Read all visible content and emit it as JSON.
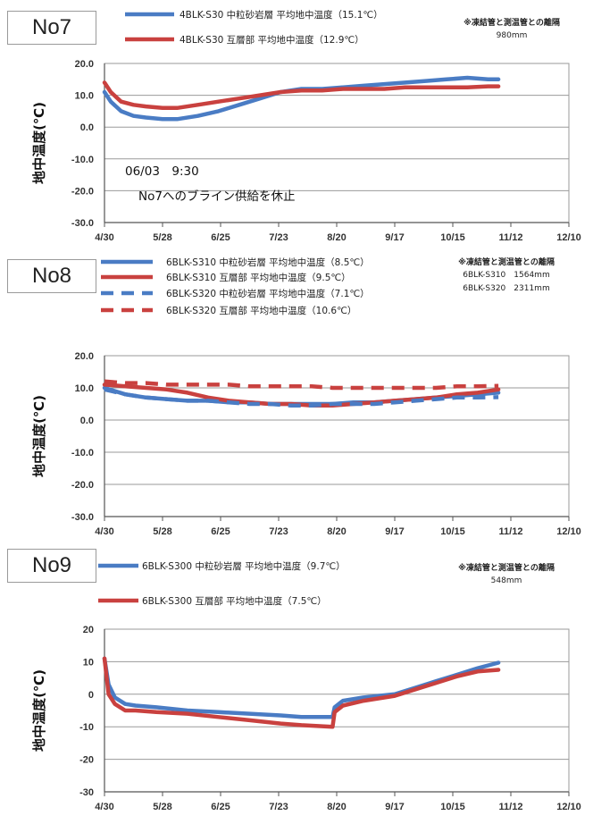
{
  "colors": {
    "blue": "#4a7cc4",
    "red": "#c9413f",
    "grid": "#9a9a9a",
    "axis": "#555555"
  },
  "chart_data": [
    {
      "type": "line",
      "panel_label": "No7",
      "ylabel": "地中温度(℃)",
      "ylim": [
        -30,
        20
      ],
      "yticks": [
        "20.0",
        "10.0",
        "0.0",
        "-10.0",
        "-20.0",
        "-30.0"
      ],
      "x_ticks": [
        "4/30",
        "5/28",
        "6/25",
        "7/23",
        "8/20",
        "9/17",
        "10/15",
        "11/12",
        "12/10"
      ],
      "grid": true,
      "legend_position": "top",
      "series": [
        {
          "name": "4BLK-S30 中粒砂岩層 平均地中温度（15.1℃）",
          "color": "blue",
          "style": "solid",
          "x": [
            0,
            3,
            8,
            14,
            20,
            28,
            35,
            45,
            55,
            65,
            75,
            85,
            95,
            105,
            115,
            125,
            135,
            145,
            155,
            165,
            175,
            185,
            190
          ],
          "y": [
            11,
            8,
            5,
            3.5,
            3,
            2.5,
            2.5,
            3.5,
            5,
            7,
            9,
            11,
            12,
            12,
            12.5,
            13,
            13.5,
            14,
            14.5,
            15,
            15.5,
            15,
            15
          ]
        },
        {
          "name": "4BLK-S30 互層部 平均地中温度（12.9℃）",
          "color": "red",
          "style": "solid",
          "x": [
            0,
            3,
            8,
            14,
            20,
            28,
            35,
            45,
            55,
            65,
            75,
            85,
            95,
            105,
            115,
            125,
            135,
            145,
            155,
            165,
            175,
            185,
            190
          ],
          "y": [
            14,
            11,
            8,
            7,
            6.5,
            6,
            6,
            7,
            8,
            9,
            10,
            11,
            11.5,
            11.5,
            12,
            12,
            12,
            12.5,
            12.5,
            12.5,
            12.5,
            12.8,
            12.8
          ]
        }
      ],
      "notes": [
        "※凍結管と測温管との離隔",
        "980mm"
      ],
      "annotations": [
        "06/03　9:30",
        "No7へのブライン供給を休止"
      ]
    },
    {
      "type": "line",
      "panel_label": "No8",
      "ylabel": "地中温度(℃)",
      "ylim": [
        -30,
        20
      ],
      "yticks": [
        "20.0",
        "10.0",
        "0.0",
        "-10.0",
        "-20.0",
        "-30.0"
      ],
      "x_ticks": [
        "4/30",
        "5/28",
        "6/25",
        "7/23",
        "8/20",
        "9/17",
        "10/15",
        "11/12",
        "12/10"
      ],
      "grid": true,
      "legend_position": "top",
      "series": [
        {
          "name": "6BLK-S310 中粒砂岩層 平均地中温度（8.5℃）",
          "color": "blue",
          "style": "solid",
          "x": [
            0,
            10,
            20,
            30,
            40,
            50,
            60,
            70,
            80,
            90,
            100,
            110,
            120,
            130,
            140,
            150,
            160,
            170,
            180,
            190
          ],
          "y": [
            10,
            8,
            7,
            6.5,
            6,
            6,
            5.5,
            5.5,
            5,
            5,
            5,
            5,
            5.5,
            5.5,
            6,
            6.5,
            7,
            7.5,
            8,
            8.5
          ]
        },
        {
          "name": "6BLK-S310 互層部 平均地中温度（9.5℃）",
          "color": "red",
          "style": "solid",
          "x": [
            0,
            10,
            20,
            30,
            40,
            50,
            60,
            70,
            80,
            90,
            100,
            110,
            120,
            130,
            140,
            150,
            160,
            170,
            180,
            190
          ],
          "y": [
            11,
            10.5,
            10,
            9.5,
            8.5,
            7,
            6,
            5.5,
            5,
            5,
            4.5,
            4.5,
            5,
            5.5,
            6,
            6.5,
            7,
            8,
            8.5,
            9.5
          ]
        },
        {
          "name": "6BLK-S320 中粒砂岩層 平均地中温度（7.1℃）",
          "color": "blue",
          "style": "dashed",
          "x": [
            0,
            10,
            20,
            30,
            40,
            50,
            60,
            70,
            80,
            90,
            100,
            110,
            120,
            130,
            140,
            150,
            160,
            170,
            180,
            190
          ],
          "y": [
            9.5,
            8,
            7,
            6.5,
            6,
            6,
            5.5,
            5,
            5,
            4.5,
            4.5,
            5,
            5,
            5,
            5.5,
            6,
            6.5,
            7,
            7,
            7.1
          ]
        },
        {
          "name": "6BLK-S320 互層部 平均地中温度（10.6℃）",
          "color": "red",
          "style": "dashed",
          "x": [
            0,
            10,
            20,
            30,
            40,
            50,
            60,
            70,
            80,
            90,
            100,
            110,
            120,
            130,
            140,
            150,
            160,
            170,
            180,
            190
          ],
          "y": [
            12,
            11.5,
            11.5,
            11,
            11,
            11,
            11,
            10.5,
            10.5,
            10.5,
            10.5,
            10,
            10,
            10,
            10,
            10,
            10,
            10.5,
            10.5,
            10.6
          ]
        }
      ],
      "notes": [
        "※凍結管と測温管との離隔",
        "6BLK-S310　1564mm",
        "6BLK-S320　2311mm"
      ]
    },
    {
      "type": "line",
      "panel_label": "No9",
      "ylabel": "地中温度(℃)",
      "ylim": [
        -30,
        20
      ],
      "yticks": [
        "20",
        "10",
        "0",
        "-10",
        "-20",
        "-30"
      ],
      "x_ticks": [
        "4/30",
        "5/28",
        "6/25",
        "7/23",
        "8/20",
        "9/17",
        "10/15",
        "11/12",
        "12/10"
      ],
      "grid": true,
      "legend_position": "top",
      "series": [
        {
          "name": "6BLK-S300 中粒砂岩層 平均地中温度（9.7℃）",
          "color": "blue",
          "style": "solid",
          "x": [
            0,
            2,
            5,
            10,
            15,
            25,
            40,
            55,
            70,
            85,
            95,
            110,
            111,
            115,
            125,
            140,
            150,
            160,
            170,
            180,
            190
          ],
          "y": [
            11,
            3,
            -1,
            -3,
            -3.5,
            -4,
            -5,
            -5.5,
            -6,
            -6.5,
            -7,
            -7,
            -4,
            -2,
            -1,
            0,
            2,
            4,
            6,
            8,
            9.7
          ]
        },
        {
          "name": "6BLK-S300 互層部 平均地中温度（7.5℃）",
          "color": "red",
          "style": "solid",
          "x": [
            0,
            2,
            5,
            10,
            15,
            25,
            40,
            55,
            70,
            85,
            95,
            110,
            111,
            115,
            125,
            140,
            150,
            160,
            170,
            180,
            190
          ],
          "y": [
            11,
            0,
            -3,
            -5,
            -5,
            -5.5,
            -6,
            -7,
            -8,
            -9,
            -9.5,
            -10,
            -5.5,
            -3.5,
            -2,
            -0.5,
            1.5,
            3.5,
            5.5,
            7,
            7.5
          ]
        }
      ],
      "notes": [
        "※凍結管と測温管との離隔",
        "548mm"
      ]
    }
  ]
}
